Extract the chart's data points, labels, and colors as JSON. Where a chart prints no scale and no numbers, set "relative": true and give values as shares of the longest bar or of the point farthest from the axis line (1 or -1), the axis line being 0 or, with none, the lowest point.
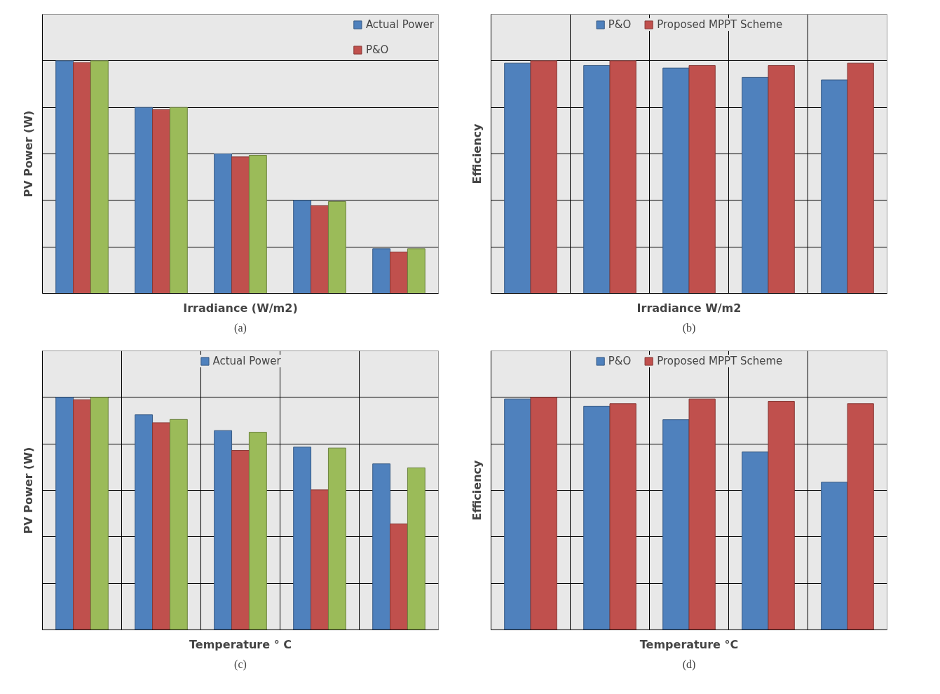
{
  "chart_data": [
    {
      "type": "bar",
      "relative": true,
      "xlabel": "Irradiance (W/m2)",
      "ylabel": "PV Power (W)",
      "annotations": [
        "(a)"
      ],
      "categories": [
        null,
        null,
        null,
        null,
        null
      ],
      "grid": "y",
      "legend": "top right",
      "series": [
        {
          "name": "Actual Power",
          "color": "#4f81bd",
          "values": [
            1,
            0.8,
            0.6,
            0.4,
            0.192
          ]
        },
        {
          "name": "P&O",
          "color": "#c0504d",
          "values": [
            0.993,
            0.79,
            0.587,
            0.377,
            0.178
          ]
        },
        {
          "color": "#9bbb59",
          "values": [
            1,
            0.8,
            0.594,
            0.395,
            0.192
          ]
        }
      ]
    },
    {
      "type": "bar",
      "relative": true,
      "xlabel": "Irradiance W/m2",
      "ylabel": "Efficiency",
      "annotations": [
        "(b)"
      ],
      "categories": [
        null,
        null,
        null,
        null,
        null
      ],
      "grid": true,
      "legend": "top",
      "series": [
        {
          "name": "P&O",
          "color": "#4f81bd",
          "values": [
            0.99,
            0.98,
            0.969,
            0.929,
            0.918
          ]
        },
        {
          "name": "Proposed MPPT Scheme",
          "color": "#c0504d",
          "values": [
            1,
            1,
            0.98,
            0.98,
            0.99
          ]
        }
      ]
    },
    {
      "type": "bar",
      "relative": true,
      "xlabel": "Temperature ° C",
      "ylabel": "PV Power (W)",
      "annotations": [
        "(c)"
      ],
      "categories": [
        null,
        null,
        null,
        null,
        null
      ],
      "grid": true,
      "legend": "top",
      "series": [
        {
          "name": "Actual Power",
          "color": "#4f81bd",
          "values": [
            1,
            0.925,
            0.857,
            0.786,
            0.714
          ]
        },
        {
          "color": "#c0504d",
          "values": [
            0.99,
            0.891,
            0.772,
            0.602,
            0.456
          ]
        },
        {
          "color": "#9bbb59",
          "values": [
            1,
            0.905,
            0.85,
            0.782,
            0.697
          ]
        }
      ]
    },
    {
      "type": "bar",
      "relative": true,
      "xlabel": "Temperature °C",
      "ylabel": "Efficiency",
      "annotations": [
        "(d)"
      ],
      "categories": [
        null,
        null,
        null,
        null,
        null
      ],
      "grid": true,
      "legend": "top",
      "series": [
        {
          "name": "P&O",
          "color": "#4f81bd",
          "values": [
            0.993,
            0.962,
            0.904,
            0.765,
            0.635
          ]
        },
        {
          "name": "Proposed MPPT Scheme",
          "color": "#c0504d",
          "values": [
            1,
            0.973,
            0.993,
            0.983,
            0.973
          ]
        }
      ]
    }
  ]
}
